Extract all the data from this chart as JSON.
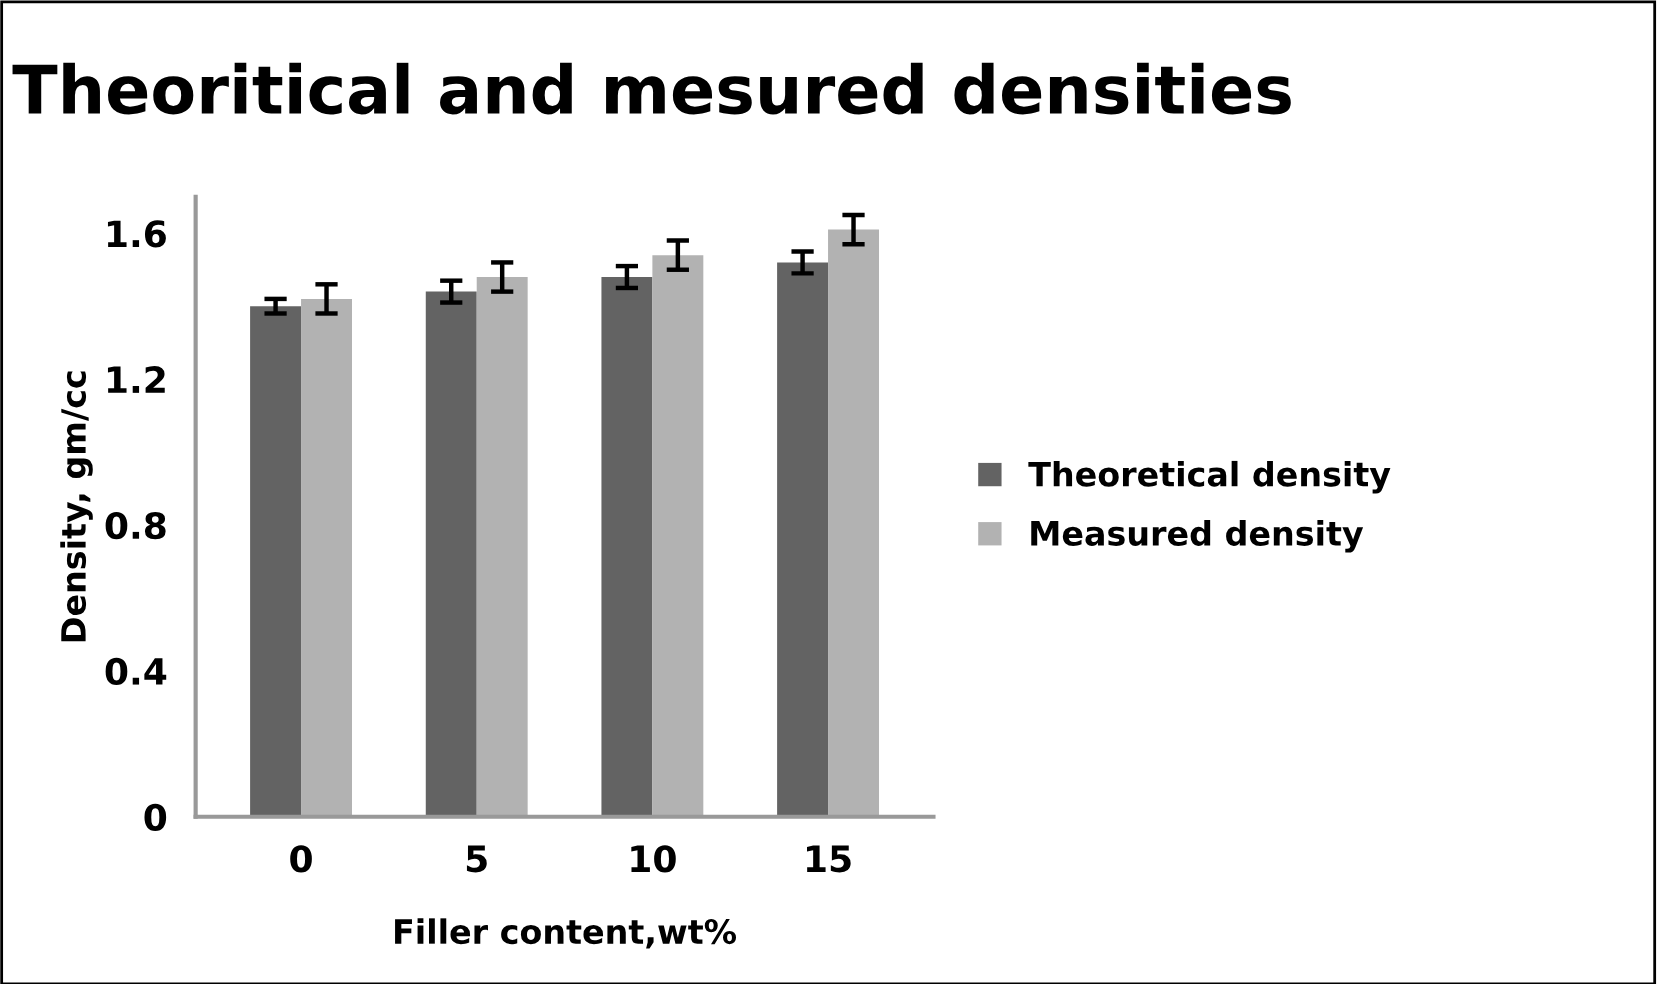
{
  "chart_data": {
    "type": "bar",
    "title": "Theoritical and mesured densities",
    "xlabel": "Filler content,wt%",
    "ylabel": "Density, gm/cc",
    "categories": [
      "0",
      "5",
      "10",
      "15"
    ],
    "series": [
      {
        "name": "Theoretical density",
        "color": "#636363",
        "values": [
          1.4,
          1.44,
          1.48,
          1.52
        ],
        "errors": [
          0.02,
          0.03,
          0.03,
          0.03
        ]
      },
      {
        "name": "Measured density",
        "color": "#b2b2b2",
        "values": [
          1.42,
          1.48,
          1.54,
          1.61
        ],
        "errors": [
          0.04,
          0.04,
          0.04,
          0.04
        ]
      }
    ],
    "ylim": [
      0,
      1.7
    ],
    "yticks": [
      0,
      0.4,
      0.8,
      1.2,
      1.6
    ],
    "grid": false,
    "legend": "right"
  }
}
